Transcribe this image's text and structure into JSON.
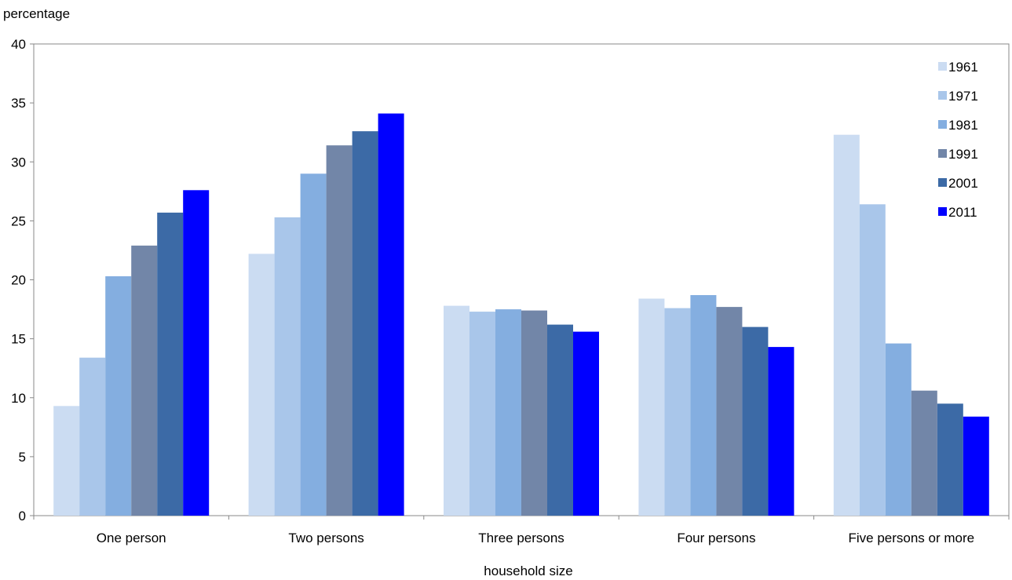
{
  "chart_data": {
    "type": "bar",
    "title": "",
    "ylabel": "percentage",
    "xlabel": "household size",
    "ylim": [
      0,
      40
    ],
    "yticks": [
      "0",
      "5",
      "10",
      "15",
      "20",
      "25",
      "30",
      "35",
      "40"
    ],
    "ytick_values": [
      0,
      5,
      10,
      15,
      20,
      25,
      30,
      35,
      40
    ],
    "categories": [
      "One person",
      "Two persons",
      "Three persons",
      "Four persons",
      "Five persons or more"
    ],
    "series": [
      {
        "name": "1961",
        "color": "#cbdcf2",
        "values": [
          9.3,
          22.2,
          17.8,
          18.4,
          32.3
        ]
      },
      {
        "name": "1971",
        "color": "#a9c6ea",
        "values": [
          13.4,
          25.3,
          17.3,
          17.6,
          26.4
        ]
      },
      {
        "name": "1981",
        "color": "#84aee0",
        "values": [
          20.3,
          29.0,
          17.5,
          18.7,
          14.6
        ]
      },
      {
        "name": "1991",
        "color": "#7286a8",
        "values": [
          22.9,
          31.4,
          17.4,
          17.7,
          10.6
        ]
      },
      {
        "name": "2001",
        "color": "#3c6aa6",
        "values": [
          25.7,
          32.6,
          16.2,
          16.0,
          9.5
        ]
      },
      {
        "name": "2011",
        "color": "#0000ff",
        "values": [
          27.6,
          34.1,
          15.6,
          14.3,
          8.4
        ]
      }
    ],
    "grid": false,
    "legend_position": "top-right"
  }
}
